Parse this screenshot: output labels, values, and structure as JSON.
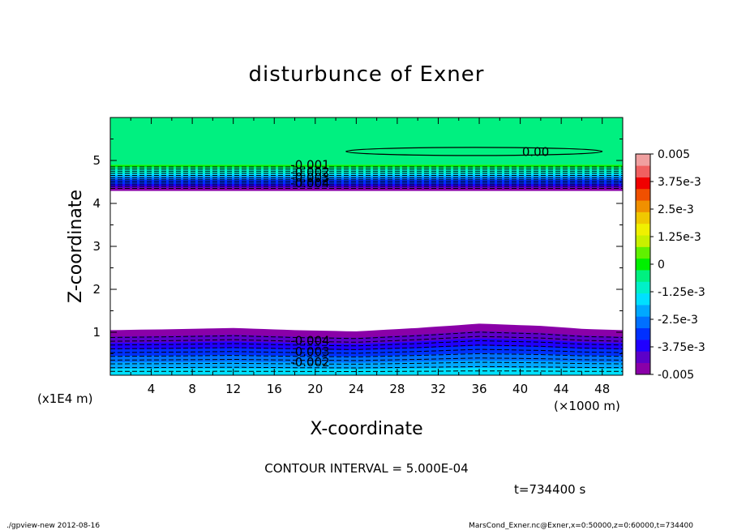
{
  "chart_data": {
    "type": "contour",
    "title": "disturbunce of Exner",
    "xlabel": "X-coordinate",
    "ylabel": "Z-coordinate",
    "x_unit": "(×1000 m)",
    "y_unit": "(x1E4 m)",
    "xlim": [
      0,
      50
    ],
    "ylim": [
      0,
      6
    ],
    "x_ticks": [
      4,
      8,
      12,
      16,
      20,
      24,
      28,
      32,
      36,
      40,
      44,
      48
    ],
    "y_ticks": [
      1,
      2,
      3,
      4,
      5
    ],
    "contour_interval_text": "CONTOUR INTERVAL = 5.000E-04",
    "time_text": "t=734400 s",
    "contour_labels": [
      {
        "text": "0.00",
        "x": 41.5,
        "y": 5.2
      },
      {
        "text": "-0.001",
        "x": 19.5,
        "y": 4.9
      },
      {
        "text": "-0.002",
        "x": 19.5,
        "y": 4.73
      },
      {
        "text": "-0.003",
        "x": 19.5,
        "y": 4.6
      },
      {
        "text": "-0.004",
        "x": 19.5,
        "y": 4.47
      },
      {
        "text": "-0.004",
        "x": 19.5,
        "y": 0.8
      },
      {
        "text": "-0.003",
        "x": 19.5,
        "y": 0.55
      },
      {
        "text": "-0.002",
        "x": 19.5,
        "y": 0.3
      }
    ],
    "upper_band": {
      "z_top_colored": 6.0,
      "z_green_to": 4.9,
      "z_violet_bottom": 4.3,
      "value_range": [
        -0.005,
        0.0
      ]
    },
    "lower_band": {
      "value_range": [
        -0.005,
        -0.0012
      ],
      "profile_x": [
        0,
        6,
        12,
        18,
        24,
        30,
        36,
        42,
        46,
        50
      ],
      "profile_top_z": [
        1.05,
        1.07,
        1.1,
        1.05,
        1.02,
        1.1,
        1.2,
        1.15,
        1.08,
        1.05
      ]
    },
    "colorbar": {
      "min": -0.005,
      "max": 0.005,
      "labels": [
        "0.005",
        "3.75e-3",
        "2.5e-3",
        "1.25e-3",
        "0",
        "-1.25e-3",
        "-2.5e-3",
        "-3.75e-3",
        "-0.005"
      ],
      "colors": [
        "#8a00a8",
        "#5c00c8",
        "#2000ff",
        "#0030ff",
        "#0070ff",
        "#00a8ff",
        "#00e0ff",
        "#00f0c8",
        "#00f080",
        "#00f000",
        "#60f000",
        "#c8f000",
        "#f0f000",
        "#f0c800",
        "#f09000",
        "#f05000",
        "#f00000",
        "#f06060",
        "#f0a0a0"
      ]
    }
  },
  "footer": {
    "left": "./gpview-new 2012-08-16",
    "right": "MarsCond_Exner.nc@Exner,x=0:50000,z=0:60000,t=734400"
  }
}
